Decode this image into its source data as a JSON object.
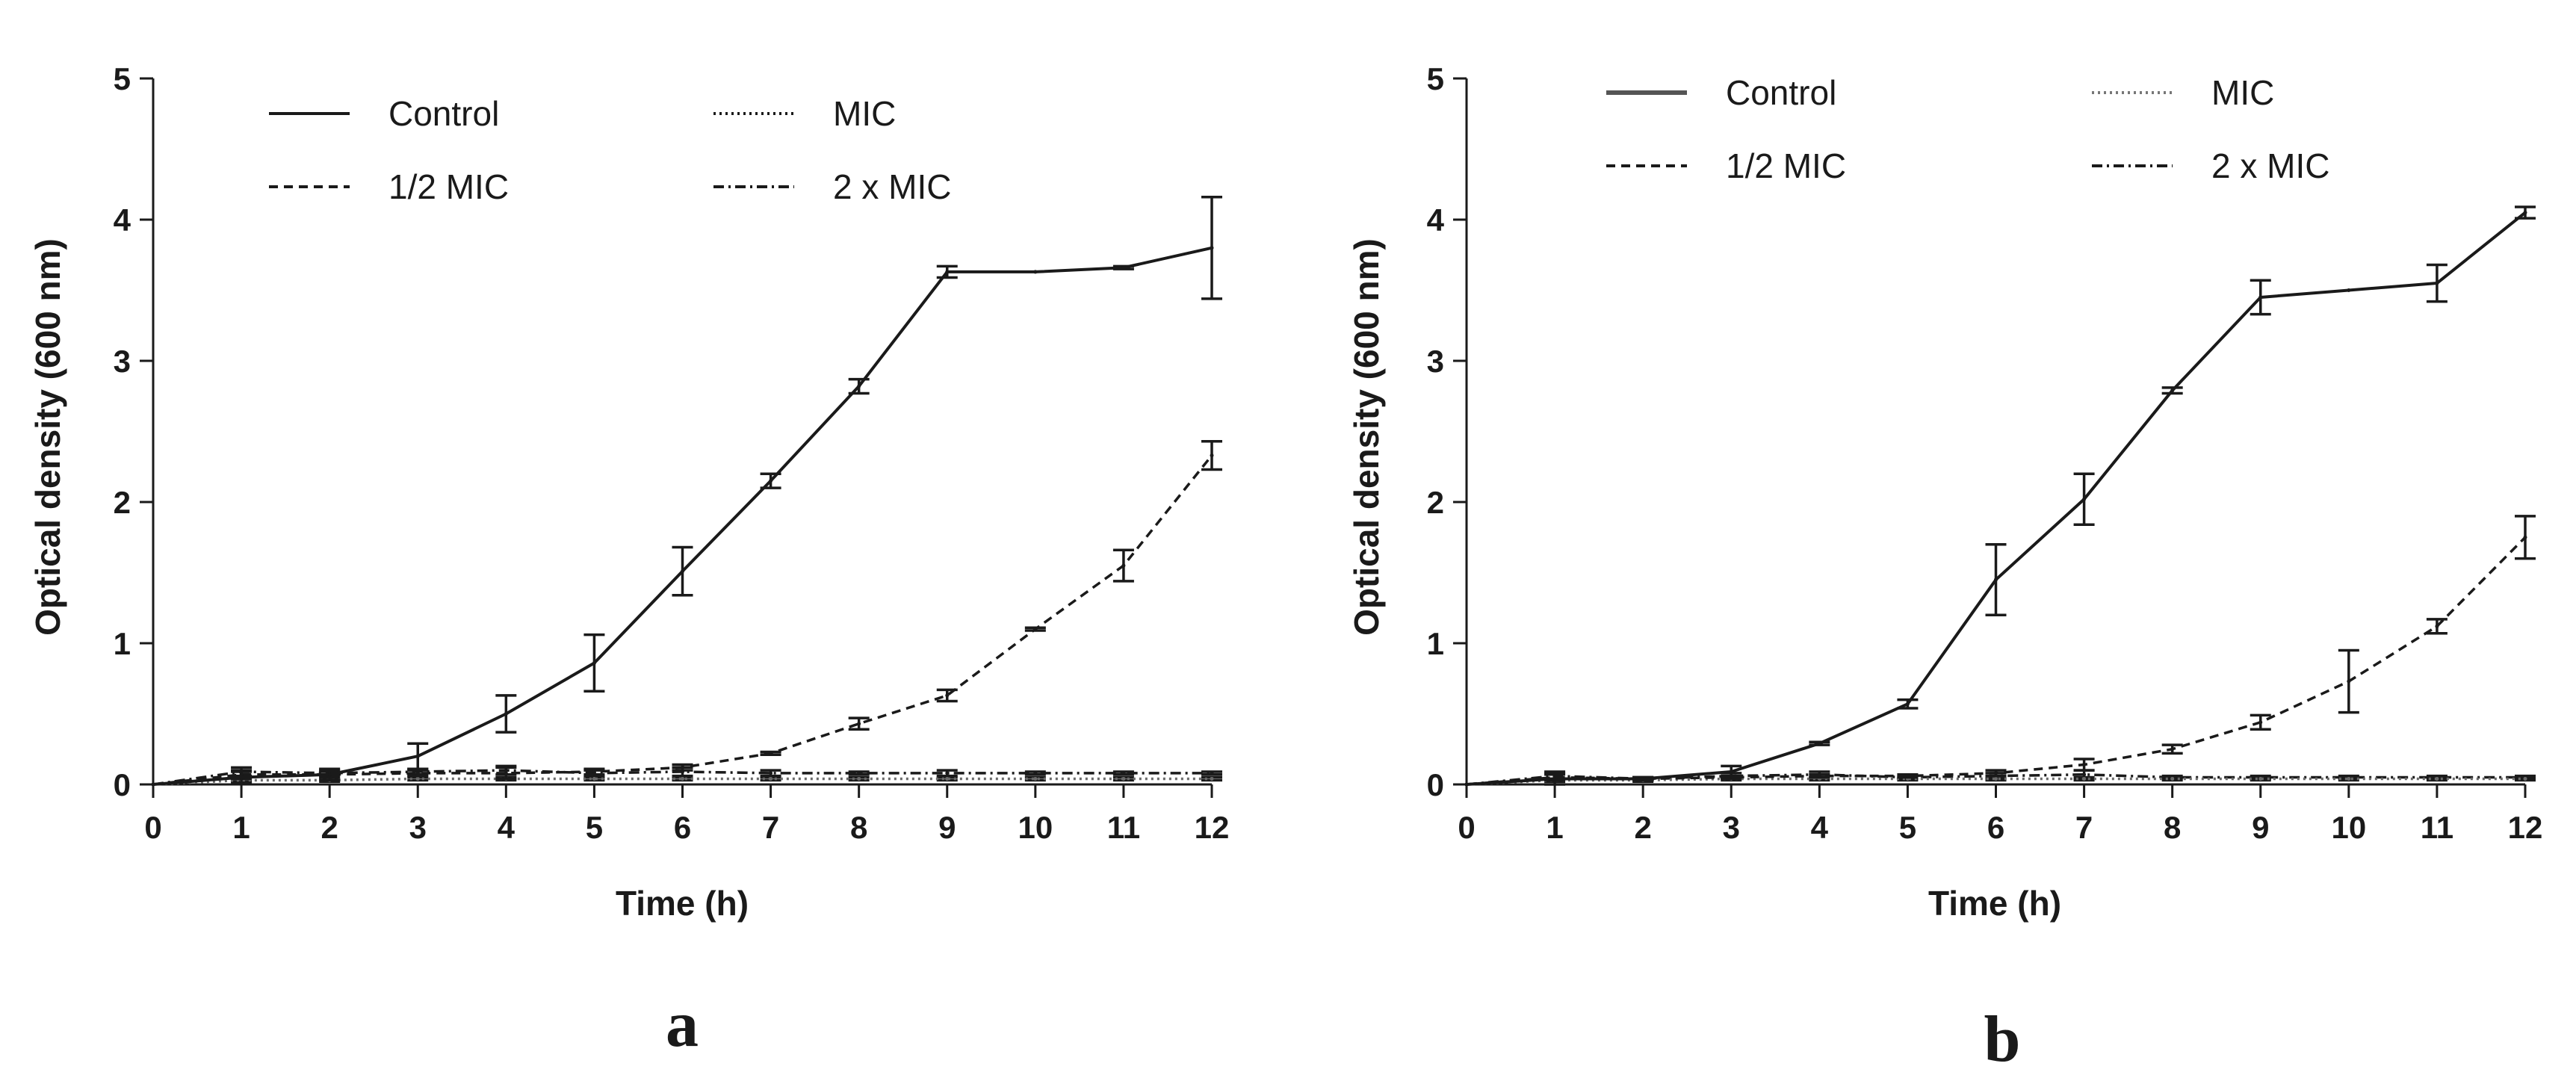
{
  "chart_data": [
    {
      "type": "line",
      "panel_label": "a",
      "xlabel": "Time (h)",
      "ylabel": "Optical density (600 nm)",
      "xlim": [
        0,
        12
      ],
      "ylim": [
        0,
        5
      ],
      "x_ticks": [
        0,
        1,
        2,
        3,
        4,
        5,
        6,
        7,
        8,
        9,
        10,
        11,
        12
      ],
      "y_ticks": [
        0,
        1,
        2,
        3,
        4,
        5
      ],
      "grid": false,
      "legend_position": "top, two columns",
      "x": [
        0,
        1,
        2,
        3,
        4,
        5,
        6,
        7,
        8,
        9,
        10,
        11,
        12
      ],
      "series": [
        {
          "name": "Control",
          "style": "solid",
          "values": [
            0,
            0.05,
            0.07,
            0.2,
            0.5,
            0.86,
            1.51,
            2.15,
            2.82,
            3.63,
            3.63,
            3.66,
            3.8
          ],
          "errors": [
            0,
            0.04,
            0.04,
            0.09,
            0.13,
            0.2,
            0.17,
            0.05,
            0.05,
            0.04,
            0,
            0.01,
            0.36
          ]
        },
        {
          "name": "1/2 MIC",
          "style": "dashed",
          "values": [
            0,
            0.07,
            0.07,
            0.08,
            0.08,
            0.09,
            0.12,
            0.22,
            0.43,
            0.63,
            1.1,
            1.55,
            2.33
          ],
          "errors": [
            0,
            0.03,
            0.02,
            0.02,
            0.04,
            0.02,
            0.02,
            0.01,
            0.04,
            0.04,
            0.01,
            0.11,
            0.1
          ]
        },
        {
          "name": "MIC",
          "style": "dotted",
          "values": [
            0,
            0.03,
            0.03,
            0.04,
            0.04,
            0.04,
            0.04,
            0.04,
            0.04,
            0.04,
            0.04,
            0.04,
            0.04
          ],
          "errors": [
            0,
            0.01,
            0.01,
            0.01,
            0.01,
            0.01,
            0.01,
            0.01,
            0.01,
            0.01,
            0.01,
            0.01,
            0.01
          ]
        },
        {
          "name": "2 x MIC",
          "style": "dash-dot",
          "values": [
            0,
            0.09,
            0.08,
            0.09,
            0.1,
            0.08,
            0.09,
            0.08,
            0.08,
            0.08,
            0.08,
            0.08,
            0.08
          ],
          "errors": [
            0,
            0.03,
            0.02,
            0.02,
            0.03,
            0.02,
            0.03,
            0.02,
            0.01,
            0.02,
            0.01,
            0.01,
            0.01
          ]
        }
      ]
    },
    {
      "type": "line",
      "panel_label": "b",
      "xlabel": "Time (h)",
      "ylabel": "Optical density (600 nm)",
      "xlim": [
        0,
        12
      ],
      "ylim": [
        0,
        5
      ],
      "x_ticks": [
        0,
        1,
        2,
        3,
        4,
        5,
        6,
        7,
        8,
        9,
        10,
        11,
        12
      ],
      "y_ticks": [
        0,
        1,
        2,
        3,
        4,
        5
      ],
      "grid": false,
      "legend_position": "top, two columns",
      "x": [
        0,
        1,
        2,
        3,
        4,
        5,
        6,
        7,
        8,
        9,
        10,
        11,
        12
      ],
      "series": [
        {
          "name": "Control",
          "style": "solid",
          "values": [
            0,
            0.04,
            0.04,
            0.09,
            0.29,
            0.57,
            1.45,
            2.02,
            2.79,
            3.45,
            3.5,
            3.55,
            4.05
          ],
          "errors": [
            0,
            0.05,
            0.01,
            0.04,
            0.01,
            0.03,
            0.25,
            0.18,
            0.02,
            0.12,
            0,
            0.13,
            0.04
          ]
        },
        {
          "name": "1/2 MIC",
          "style": "dashed",
          "values": [
            0,
            0.05,
            0.04,
            0.05,
            0.06,
            0.06,
            0.08,
            0.14,
            0.25,
            0.44,
            0.73,
            1.12,
            1.75
          ],
          "errors": [
            0,
            0.02,
            0.01,
            0.01,
            0.01,
            0.01,
            0.02,
            0.04,
            0.03,
            0.05,
            0.22,
            0.05,
            0.15
          ]
        },
        {
          "name": "MIC",
          "style": "dotted",
          "values": [
            0,
            0.03,
            0.03,
            0.04,
            0.04,
            0.04,
            0.04,
            0.04,
            0.04,
            0.04,
            0.04,
            0.04,
            0.04
          ],
          "errors": [
            0,
            0.01,
            0.01,
            0.01,
            0.01,
            0.01,
            0.01,
            0.01,
            0.01,
            0.01,
            0.01,
            0.01,
            0.01
          ]
        },
        {
          "name": "2 x MIC",
          "style": "dash-dot",
          "values": [
            0,
            0.06,
            0.04,
            0.06,
            0.07,
            0.05,
            0.06,
            0.07,
            0.05,
            0.05,
            0.05,
            0.05,
            0.05
          ],
          "errors": [
            0,
            0.02,
            0.01,
            0.02,
            0.02,
            0.01,
            0.02,
            0.03,
            0.01,
            0.01,
            0.01,
            0.01,
            0.01
          ]
        }
      ]
    }
  ]
}
